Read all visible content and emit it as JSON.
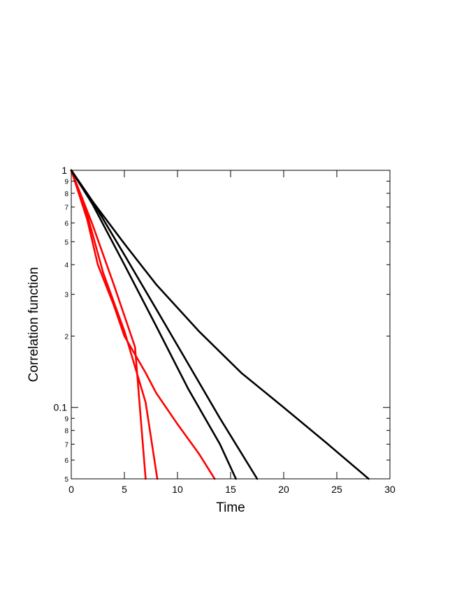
{
  "chart_data": {
    "type": "line",
    "title": "",
    "xlabel": "Time",
    "ylabel": "Correlation function",
    "xlim": [
      0,
      30
    ],
    "ylim": [
      0.05,
      1
    ],
    "y_scale": "log",
    "grid": false,
    "legend": "none",
    "x_ticks": [
      {
        "value": 0,
        "label": "0"
      },
      {
        "value": 5,
        "label": "5"
      },
      {
        "value": 10,
        "label": "10"
      },
      {
        "value": 15,
        "label": "15"
      },
      {
        "value": 20,
        "label": "20"
      },
      {
        "value": 25,
        "label": "25"
      },
      {
        "value": 30,
        "label": "30"
      }
    ],
    "y_major_ticks": [
      {
        "value": 0.1,
        "label": "0.1"
      },
      {
        "value": 1,
        "label": "1"
      }
    ],
    "y_minor_ticks": [
      {
        "value": 0.05,
        "label": "5"
      },
      {
        "value": 0.06,
        "label": "6"
      },
      {
        "value": 0.07,
        "label": "7"
      },
      {
        "value": 0.08,
        "label": "8"
      },
      {
        "value": 0.09,
        "label": "9"
      },
      {
        "value": 0.2,
        "label": "2"
      },
      {
        "value": 0.3,
        "label": "3"
      },
      {
        "value": 0.4,
        "label": "4"
      },
      {
        "value": 0.5,
        "label": "5"
      },
      {
        "value": 0.6,
        "label": "6"
      },
      {
        "value": 0.7,
        "label": "7"
      },
      {
        "value": 0.8,
        "label": "8"
      },
      {
        "value": 0.9,
        "label": "9"
      }
    ],
    "series": [
      {
        "color": "#ff0000",
        "points": [
          [
            0,
            1.0
          ],
          [
            2,
            0.59
          ],
          [
            4,
            0.33
          ],
          [
            6,
            0.18
          ],
          [
            7,
            0.05
          ]
        ]
      },
      {
        "color": "#ff0000",
        "points": [
          [
            0,
            1.0
          ],
          [
            1.5,
            0.65
          ],
          [
            3,
            0.37
          ],
          [
            5,
            0.21
          ],
          [
            7,
            0.105
          ],
          [
            8.1,
            0.05
          ]
        ]
      },
      {
        "color": "#ff0000",
        "points": [
          [
            0,
            1.0
          ],
          [
            1.5,
            0.62
          ],
          [
            2.5,
            0.4
          ],
          [
            4,
            0.27
          ],
          [
            5,
            0.2
          ],
          [
            7,
            0.14
          ],
          [
            8,
            0.115
          ],
          [
            10,
            0.085
          ],
          [
            12,
            0.064
          ],
          [
            13.5,
            0.05
          ]
        ]
      },
      {
        "color": "#000000",
        "points": [
          [
            0,
            1.0
          ],
          [
            2,
            0.72
          ],
          [
            5,
            0.4
          ],
          [
            8,
            0.22
          ],
          [
            11,
            0.12
          ],
          [
            14,
            0.07
          ],
          [
            15.5,
            0.05
          ]
        ]
      },
      {
        "color": "#000000",
        "points": [
          [
            0,
            1.0
          ],
          [
            2,
            0.74
          ],
          [
            5,
            0.44
          ],
          [
            8,
            0.26
          ],
          [
            11,
            0.153
          ],
          [
            14,
            0.09
          ],
          [
            17.5,
            0.05
          ]
        ]
      },
      {
        "color": "#000000",
        "points": [
          [
            0,
            1.0
          ],
          [
            2,
            0.74
          ],
          [
            5,
            0.49
          ],
          [
            8,
            0.33
          ],
          [
            12,
            0.21
          ],
          [
            16,
            0.14
          ],
          [
            20,
            0.1
          ],
          [
            24,
            0.071
          ],
          [
            28,
            0.05
          ]
        ]
      }
    ]
  }
}
